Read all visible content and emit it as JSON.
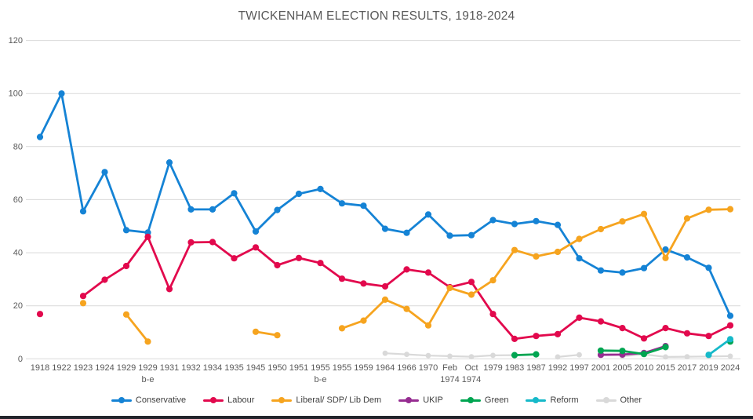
{
  "chart_data": {
    "type": "line",
    "title": "TWICKENHAM ELECTION RESULTS, 1918-2024",
    "xlabel": "",
    "ylabel": "",
    "ylim": [
      0,
      120
    ],
    "ytick_interval": 20,
    "grid": "horizontal",
    "legend_position": "bottom",
    "categories": [
      "1918",
      "1922",
      "1923",
      "1924",
      "1929",
      "1929\nb-e",
      "1931",
      "1932",
      "1934",
      "1935",
      "1945",
      "1950",
      "1951",
      "1955\nb-e",
      "1955",
      "1959",
      "1964",
      "1966",
      "1970",
      "Feb\n1974",
      "Oct\n1974",
      "1979",
      "1983",
      "1987",
      "1992",
      "1997",
      "2001",
      "2005",
      "2010",
      "2015",
      "2017",
      "2019",
      "2024"
    ],
    "series": [
      {
        "name": "Conservative",
        "color": "#1583d5",
        "values": [
          83.6,
          100,
          55.6,
          70.4,
          48.5,
          47.6,
          74.0,
          56.3,
          56.3,
          62.4,
          48.0,
          56.1,
          62.2,
          64.0,
          58.6,
          57.7,
          49.0,
          47.5,
          54.4,
          46.4,
          46.6,
          52.3,
          50.8,
          51.9,
          50.5,
          37.9,
          33.3,
          32.5,
          34.2,
          41.2,
          38.2,
          34.3,
          16.2
        ]
      },
      {
        "name": "Labour",
        "color": "#e2094d",
        "values": [
          16.9,
          null,
          23.7,
          29.8,
          35.0,
          46.0,
          26.3,
          43.9,
          44.0,
          37.9,
          42.0,
          35.3,
          38.0,
          36.1,
          30.2,
          28.4,
          27.3,
          33.7,
          32.5,
          27.0,
          29.0,
          16.9,
          7.5,
          8.6,
          9.3,
          15.5,
          14.1,
          11.6,
          7.7,
          11.6,
          9.6,
          8.6,
          12.6
        ]
      },
      {
        "name": "Liberal/ SDP/ Lib Dem",
        "color": "#f6a41f",
        "values": [
          null,
          null,
          21.0,
          null,
          16.7,
          6.5,
          null,
          null,
          null,
          null,
          10.2,
          8.9,
          null,
          null,
          11.5,
          14.4,
          22.3,
          18.8,
          12.6,
          26.7,
          24.2,
          29.6,
          41.0,
          38.6,
          40.3,
          45.2,
          48.9,
          51.8,
          54.6,
          38.0,
          52.9,
          56.2,
          56.4
        ]
      },
      {
        "name": "UKIP",
        "color": "#962d91",
        "values": [
          null,
          null,
          null,
          null,
          null,
          null,
          null,
          null,
          null,
          null,
          null,
          null,
          null,
          null,
          null,
          null,
          null,
          null,
          null,
          null,
          null,
          null,
          null,
          null,
          null,
          null,
          1.5,
          1.6,
          2.2,
          4.8,
          null,
          null,
          null
        ]
      },
      {
        "name": "Green",
        "color": "#00a551",
        "values": [
          null,
          null,
          null,
          null,
          null,
          null,
          null,
          null,
          null,
          null,
          null,
          null,
          null,
          null,
          null,
          null,
          null,
          null,
          null,
          null,
          null,
          null,
          1.4,
          1.7,
          null,
          null,
          3.1,
          3.0,
          1.8,
          4.4,
          null,
          null,
          6.5
        ]
      },
      {
        "name": "Reform",
        "color": "#16b9c9",
        "values": [
          null,
          null,
          null,
          null,
          null,
          null,
          null,
          null,
          null,
          null,
          null,
          null,
          null,
          null,
          null,
          null,
          null,
          null,
          null,
          null,
          null,
          null,
          null,
          null,
          null,
          null,
          null,
          null,
          null,
          null,
          null,
          1.5,
          7.4
        ]
      },
      {
        "name": "Other",
        "color": "#d9d9d9",
        "values": [
          null,
          null,
          null,
          null,
          null,
          null,
          null,
          null,
          null,
          null,
          null,
          null,
          null,
          null,
          null,
          null,
          2.1,
          1.7,
          1.2,
          1.0,
          0.8,
          1.3,
          1.4,
          null,
          0.7,
          1.5,
          null,
          1.0,
          1.7,
          0.7,
          0.8,
          0.9,
          1.0
        ]
      }
    ]
  }
}
